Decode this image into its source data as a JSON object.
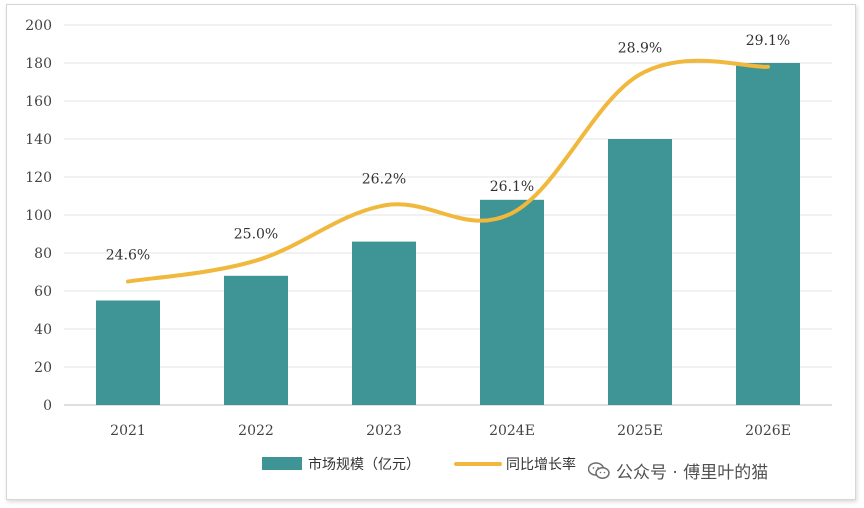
{
  "chart_data": {
    "type": "bar",
    "categories": [
      "2021",
      "2022",
      "2023",
      "2024E",
      "2025E",
      "2026E"
    ],
    "series": [
      {
        "name": "市场规模（亿元）",
        "type": "bar",
        "color": "#3f9496",
        "values": [
          55,
          68,
          86,
          108,
          140,
          180
        ]
      },
      {
        "name": "同比增长率",
        "type": "line",
        "color": "#f0b83d",
        "values": [
          24.6,
          25.0,
          26.2,
          26.1,
          28.9,
          29.1
        ],
        "labels": [
          "24.6%",
          "25.0%",
          "26.2%",
          "26.1%",
          "28.9%",
          "29.1%"
        ],
        "plot_heights": [
          65,
          76,
          105,
          101,
          174,
          178
        ]
      }
    ],
    "ylim": [
      0,
      200
    ],
    "yticks": [
      "0",
      "20",
      "40",
      "60",
      "80",
      "100",
      "120",
      "140",
      "160",
      "180",
      "200"
    ],
    "grid": true,
    "legend": "bottom",
    "title": "",
    "xlabel": "",
    "ylabel": ""
  },
  "watermark": {
    "text": "公众号 · 傅里叶的猫",
    "icon": "wechat-icon"
  }
}
